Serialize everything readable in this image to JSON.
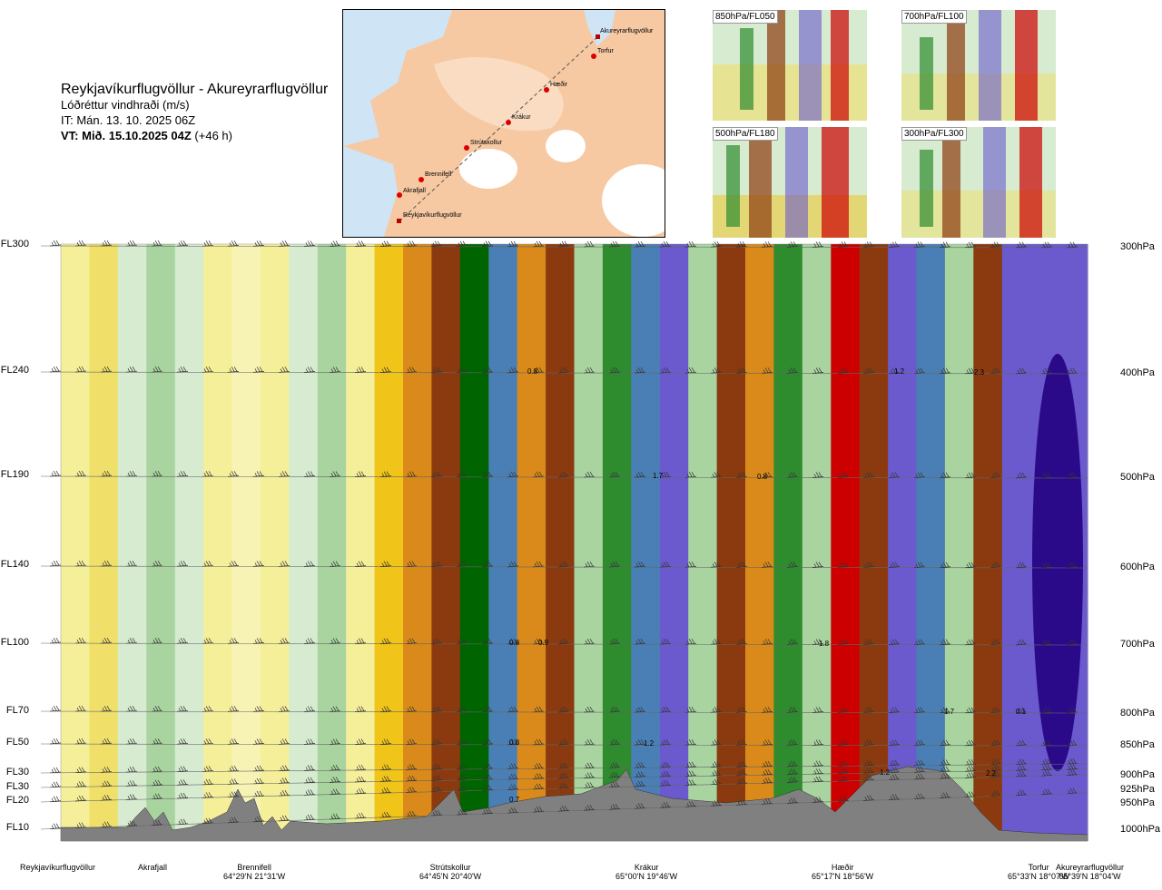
{
  "header": {
    "route": "Reykjavíkurflugvöllur - Akureyrarflugvöllur",
    "parameter": "Lóðréttur vindhraði (m/s)",
    "it_line": "IT: Mán. 13. 10. 2025 06Z",
    "vt_line": "VT: Mið. 15.10.2025 04Z",
    "vt_hours": "(+46 h)"
  },
  "map": {
    "waypoint_labels": [
      "Akureyrarflugvöllur",
      "Torfur",
      "Hæðir",
      "Krákur",
      "Strútskollur",
      "Brennifell",
      "Akrafjall",
      "Reykjavíkurflugvöllur"
    ]
  },
  "insets": [
    {
      "label": "850hPa/FL050"
    },
    {
      "label": "700hPa/FL100"
    },
    {
      "label": "500hPa/FL180"
    },
    {
      "label": "300hPa/FL300"
    }
  ],
  "chart_data": {
    "type": "heatmap",
    "title": "Lóðréttur vindhraði (m/s)",
    "flight_levels": [
      "FL300",
      "FL240",
      "FL190",
      "FL140",
      "FL100",
      "FL70",
      "FL50",
      "FL30",
      "FL30",
      "FL20",
      "FL10"
    ],
    "pressure_levels": [
      "300hPa",
      "400hPa",
      "500hPa",
      "600hPa",
      "700hPa",
      "800hPa",
      "850hPa",
      "900hPa",
      "925hPa",
      "950hPa",
      "1000hPa"
    ],
    "waypoints": [
      {
        "name": "Reykjavíkurflugvöllur",
        "coord": ""
      },
      {
        "name": "Akrafjall",
        "coord": ""
      },
      {
        "name": "Brennifell",
        "coord": "64°29'N 21°31'W"
      },
      {
        "name": "Strútskollur",
        "coord": "64°45'N 20°40'W"
      },
      {
        "name": "Krákur",
        "coord": "65°00'N 19°46'W"
      },
      {
        "name": "Hæðir",
        "coord": "65°17'N 18°56'W"
      },
      {
        "name": "Torfur",
        "coord": "65°33'N 18°07'W"
      },
      {
        "name": "Akureyrarflugvöllur",
        "coord": "65°39'N 18°04'W"
      }
    ],
    "annotations": [
      {
        "text": "0.8",
        "level": "400hPa"
      },
      {
        "text": "1.2",
        "level": "400hPa"
      },
      {
        "text": "2.3",
        "level": "400hPa"
      },
      {
        "text": "1.7",
        "level": "500hPa"
      },
      {
        "text": "0.8",
        "level": "500hPa"
      },
      {
        "text": "0.8",
        "level": "700hPa"
      },
      {
        "text": "0.9",
        "level": "700hPa"
      },
      {
        "text": "1.8",
        "level": "700hPa"
      },
      {
        "text": "1.7",
        "level": "800hPa"
      },
      {
        "text": "0.1",
        "level": "800hPa"
      },
      {
        "text": "0.8",
        "level": "850hPa"
      },
      {
        "text": "1.2",
        "level": "850hPa"
      },
      {
        "text": "1.2",
        "level": "900hPa"
      },
      {
        "text": "2.2",
        "level": "900hPa"
      },
      {
        "text": "0.7",
        "level": "950hPa"
      }
    ],
    "color_scale": [
      "#2b0a8a",
      "#6a5acd",
      "#4a7fb5",
      "#8b3a0f",
      "#d98a1a",
      "#f0c419",
      "#f5ef9a",
      "#ffffff",
      "#d6ebd0",
      "#a9d4a0",
      "#2e8b2e",
      "#006400",
      "#cc0000"
    ],
    "column_fills": [
      "#f5ef9a",
      "#f0e06a",
      "#d6ebd0",
      "#a9d4a0",
      "#d6ebd0",
      "#f5ef9a",
      "#f7f3b5",
      "#f5ef9a",
      "#d6ebd0",
      "#a9d4a0",
      "#f5ef9a",
      "#f0c419",
      "#d98a1a",
      "#8b3a0f",
      "#006400",
      "#4a7fb5",
      "#d98a1a",
      "#8b3a0f",
      "#a9d4a0",
      "#2e8b2e",
      "#4a7fb5",
      "#6a5acd",
      "#a9d4a0",
      "#8b3a0f",
      "#d98a1a",
      "#2e8b2e",
      "#a9d4a0",
      "#cc0000",
      "#8b3a0f",
      "#6a5acd",
      "#4a7fb5",
      "#a9d4a0",
      "#8b3a0f",
      "#6a5acd",
      "#6a5acd",
      "#6a5acd"
    ]
  }
}
